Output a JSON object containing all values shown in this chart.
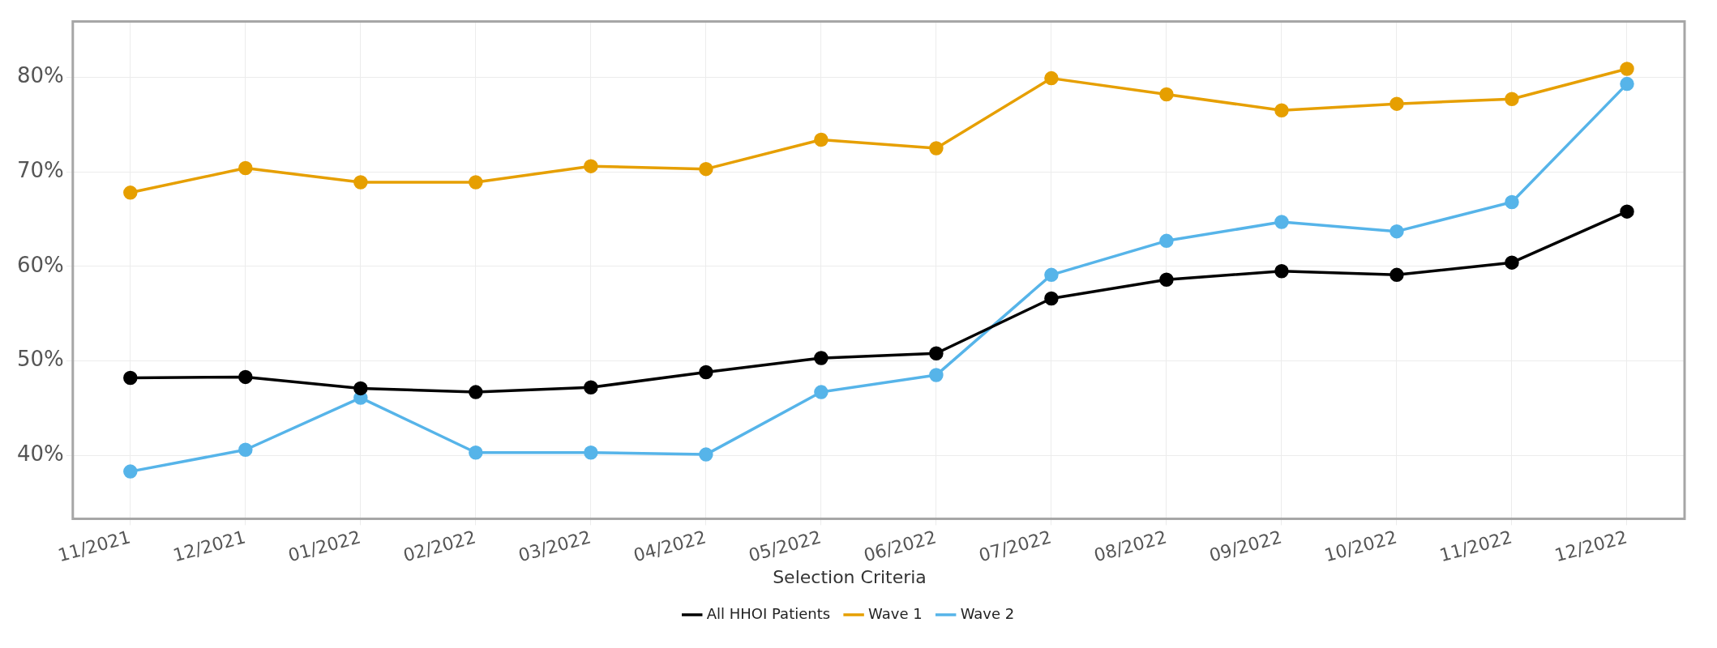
{
  "chart_data": {
    "type": "line",
    "categories": [
      "11/2021",
      "12/2021",
      "01/2022",
      "02/2022",
      "03/2022",
      "04/2022",
      "05/2022",
      "06/2022",
      "07/2022",
      "08/2022",
      "09/2022",
      "10/2022",
      "11/2022",
      "12/2022"
    ],
    "series": [
      {
        "name": "All HHOI Patients",
        "color": "#000000",
        "values": [
          48.2,
          48.3,
          47.1,
          46.7,
          47.2,
          48.8,
          50.3,
          50.8,
          56.6,
          58.6,
          59.5,
          59.1,
          60.4,
          65.8
        ]
      },
      {
        "name": "Wave 1",
        "color": "#e69f00",
        "values": [
          67.8,
          70.4,
          68.9,
          68.9,
          70.6,
          70.3,
          73.4,
          72.5,
          79.9,
          78.2,
          76.5,
          77.2,
          77.7,
          80.9
        ]
      },
      {
        "name": "Wave 2",
        "color": "#56b4e9",
        "values": [
          38.3,
          40.6,
          46.1,
          40.3,
          40.3,
          40.1,
          46.7,
          48.5,
          59.1,
          62.7,
          64.7,
          63.7,
          66.8,
          79.3
        ]
      }
    ],
    "ylim": [
      33.3,
      85.9
    ],
    "yticks": [
      {
        "value": 40,
        "label": "40%"
      },
      {
        "value": 50,
        "label": "50%"
      },
      {
        "value": 60,
        "label": "60%"
      },
      {
        "value": 70,
        "label": "70%"
      },
      {
        "value": 80,
        "label": "80%"
      }
    ],
    "grid": true,
    "legend": "bottom",
    "legend_title": "Selection Criteria",
    "marker": "circle",
    "line_style": "solid"
  }
}
